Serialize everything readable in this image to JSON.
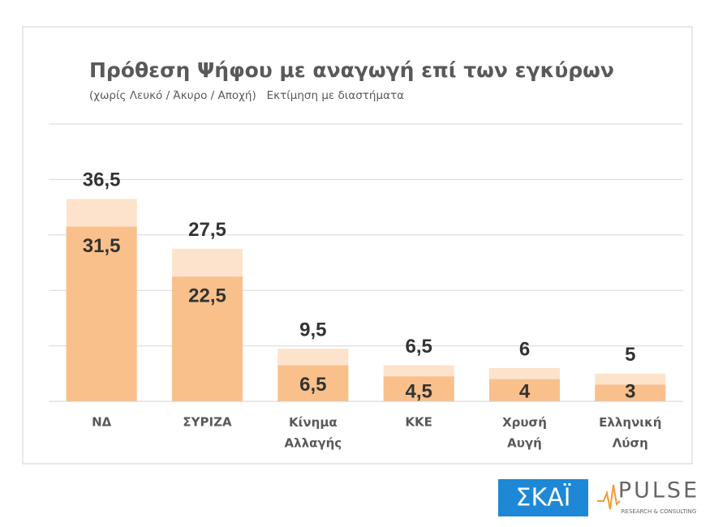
{
  "chart_data": {
    "type": "range-bar",
    "title": "Πρόθεση Ψήφου με αναγωγή επί των εγκύρων",
    "subtitle": "(χωρίς Λευκό / Άκυρο / Αποχή)   Εκτίμηση με διαστήματα",
    "categories": [
      "ΝΔ",
      "ΣΥΡΙΖΑ",
      "Κίνημα\nΑλλαγής",
      "ΚΚΕ",
      "Χρυσή\nΑυγή",
      "Ελληνική\nΛύση"
    ],
    "series": [
      {
        "color": "#f9c08b",
        "values": [
          31.5,
          22.5,
          6.5,
          4.5,
          4,
          3
        ],
        "value_labels": [
          "31,5",
          "22,5",
          "6,5",
          "4,5",
          "4",
          "3"
        ]
      },
      {
        "color": "#fde3cb",
        "values": [
          36.5,
          27.5,
          9.5,
          6.5,
          6,
          5
        ],
        "value_labels": [
          "36,5",
          "27,5",
          "9,5",
          "6,5",
          "6",
          "5"
        ]
      }
    ],
    "ylim": [
      0,
      50
    ],
    "yticks": [
      0,
      10,
      20,
      30,
      40,
      50
    ],
    "grid": true,
    "ytick_labels": false,
    "logos": {
      "broadcaster": "ΣΚΑΪ",
      "pollster": "PULSE",
      "pollster_tagline": "RESEARCH & CONSULTING"
    }
  }
}
